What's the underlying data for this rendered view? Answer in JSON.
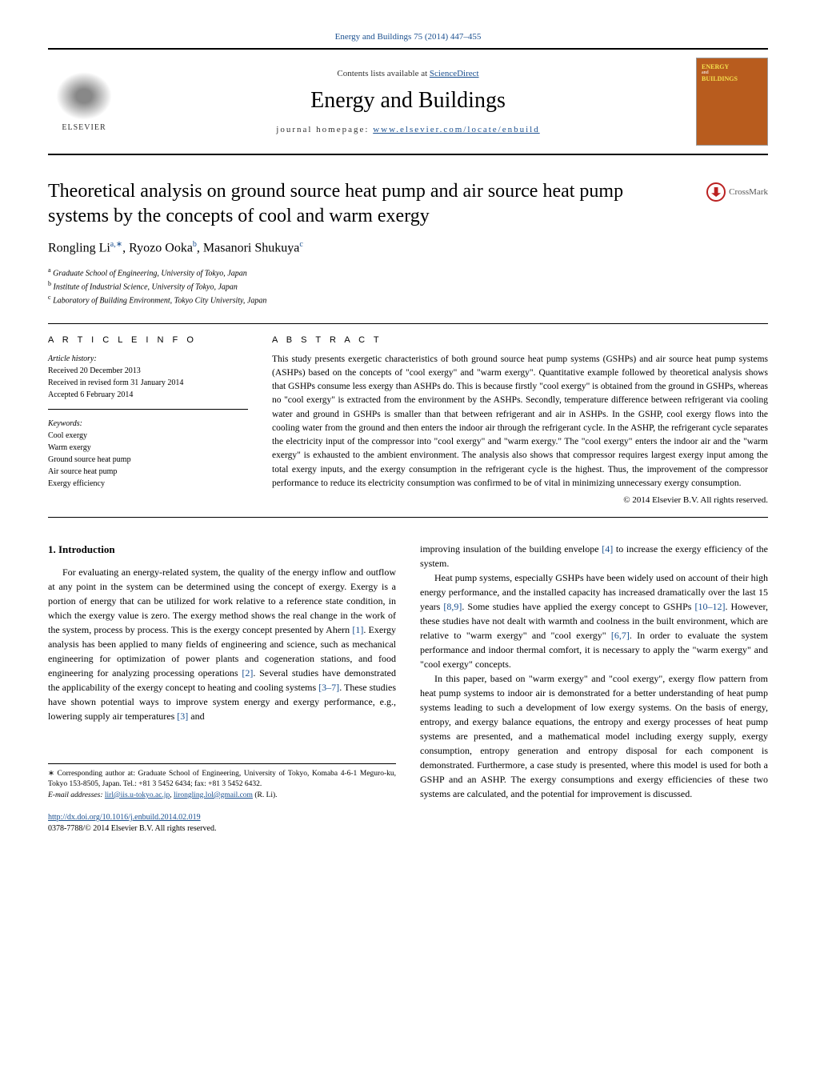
{
  "journal_ref": "Energy and Buildings 75 (2014) 447–455",
  "header": {
    "contents_prefix": "Contents lists available at ",
    "contents_link": "ScienceDirect",
    "journal_name": "Energy and Buildings",
    "homepage_prefix": "journal homepage: ",
    "homepage_link": "www.elsevier.com/locate/enbuild",
    "publisher_name": "ELSEVIER",
    "cover_title_line1": "ENERGY",
    "cover_title_line2": "BUILDINGS"
  },
  "crossmark_label": "CrossMark",
  "title": "Theoretical analysis on ground source heat pump and air source heat pump systems by the concepts of cool and warm exergy",
  "authors_html": "Rongling Li",
  "author_sup_a": "a,",
  "author_sup_star": "∗",
  "author_2": ", Ryozo Ooka",
  "author_sup_b": "b",
  "author_3": ", Masanori Shukuya",
  "author_sup_c": "c",
  "affiliations": {
    "a": "Graduate School of Engineering, University of Tokyo, Japan",
    "b": "Institute of Industrial Science, University of Tokyo, Japan",
    "c": "Laboratory of Building Environment, Tokyo City University, Japan"
  },
  "info_header": "a r t i c l e   i n f o",
  "abstract_header": "a b s t r a c t",
  "history_label": "Article history:",
  "history": {
    "received": "Received 20 December 2013",
    "revised": "Received in revised form 31 January 2014",
    "accepted": "Accepted 6 February 2014"
  },
  "keywords_label": "Keywords:",
  "keywords": [
    "Cool exergy",
    "Warm exergy",
    "Ground source heat pump",
    "Air source heat pump",
    "Exergy efficiency"
  ],
  "abstract": "This study presents exergetic characteristics of both ground source heat pump systems (GSHPs) and air source heat pump systems (ASHPs) based on the concepts of \"cool exergy\" and \"warm exergy\". Quantitative example followed by theoretical analysis shows that GSHPs consume less exergy than ASHPs do. This is because firstly \"cool exergy\" is obtained from the ground in GSHPs, whereas no \"cool exergy\" is extracted from the environment by the ASHPs. Secondly, temperature difference between refrigerant via cooling water and ground in GSHPs is smaller than that between refrigerant and air in ASHPs. In the GSHP, cool exergy flows into the cooling water from the ground and then enters the indoor air through the refrigerant cycle. In the ASHP, the refrigerant cycle separates the electricity input of the compressor into \"cool exergy\" and \"warm exergy.\" The \"cool exergy\" enters the indoor air and the \"warm exergy\" is exhausted to the ambient environment. The analysis also shows that compressor requires largest exergy input among the total exergy inputs, and the exergy consumption in the refrigerant cycle is the highest. Thus, the improvement of the compressor performance to reduce its electricity consumption was confirmed to be of vital in minimizing unnecessary exergy consumption.",
  "copyright": "© 2014 Elsevier B.V. All rights reserved.",
  "section1_heading": "1. Introduction",
  "col1_p1": "For evaluating an energy-related system, the quality of the energy inflow and outflow at any point in the system can be determined using the concept of exergy. Exergy is a portion of energy that can be utilized for work relative to a reference state condition, in which the exergy value is zero. The exergy method shows the real change in the work of the system, process by process. This is the exergy concept presented by Ahern ",
  "ref1": "[1]",
  "col1_p1b": ". Exergy analysis has been applied to many fields of engineering and science, such as mechanical engineering for optimization of power plants and cogeneration stations, and food engineering for analyzing processing operations ",
  "ref2": "[2]",
  "col1_p1c": ". Several studies have demonstrated the applicability of the exergy concept to heating and cooling systems ",
  "ref37": "[3–7]",
  "col1_p1d": ". These studies have shown potential ways to improve system energy and exergy performance, e.g., lowering supply air temperatures ",
  "ref3": "[3]",
  "col1_p1e": " and",
  "col2_p1": "improving insulation of the building envelope ",
  "ref4": "[4]",
  "col2_p1b": " to increase the exergy efficiency of the system.",
  "col2_p2": "Heat pump systems, especially GSHPs have been widely used on account of their high energy performance, and the installed capacity has increased dramatically over the last 15 years ",
  "ref89": "[8,9]",
  "col2_p2b": ". Some studies have applied the exergy concept to GSHPs ",
  "ref1012": "[10–12]",
  "col2_p2c": ". However, these studies have not dealt with warmth and coolness in the built environment, which are relative to \"warm exergy\" and \"cool exergy\" ",
  "ref67": "[6,7]",
  "col2_p2d": ". In order to evaluate the system performance and indoor thermal comfort, it is necessary to apply the \"warm exergy\" and \"cool exergy\" concepts.",
  "col2_p3": "In this paper, based on \"warm exergy\" and \"cool exergy\", exergy flow pattern from heat pump systems to indoor air is demonstrated for a better understanding of heat pump systems leading to such a development of low exergy systems. On the basis of energy, entropy, and exergy balance equations, the entropy and exergy processes of heat pump systems are presented, and a mathematical model including exergy supply, exergy consumption, entropy generation and entropy disposal for each component is demonstrated. Furthermore, a case study is presented, where this model is used for both a GSHP and an ASHP. The exergy consumptions and exergy efficiencies of these two systems are calculated, and the potential for improvement is discussed.",
  "footnote_star": "∗ Corresponding author at: Graduate School of Engineering, University of Tokyo, Komaba 4-6-1 Meguro-ku, Tokyo 153-8505, Japan. Tel.: +81 3 5452 6434; fax: +81 3 5452 6432.",
  "footnote_email_label": "E-mail addresses: ",
  "footnote_email1": "lirl@iis.u-tokyo.ac.jp",
  "footnote_email_sep": ", ",
  "footnote_email2": "lirongling.lol@gmail.com",
  "footnote_email_suffix": " (R. Li).",
  "doi_link": "http://dx.doi.org/10.1016/j.enbuild.2014.02.019",
  "issn_line": "0378-7788/© 2014 Elsevier B.V. All rights reserved."
}
